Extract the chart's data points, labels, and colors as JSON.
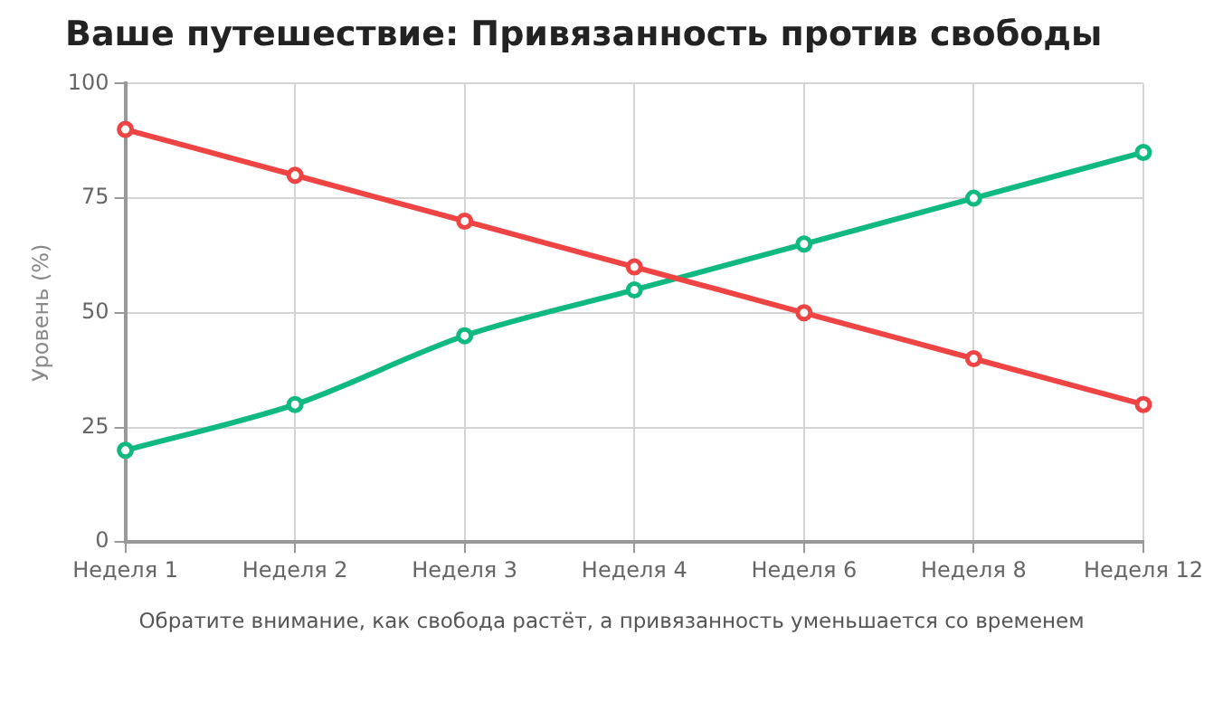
{
  "chart_data": {
    "type": "line",
    "title": "Ваше путешествие: Привязанность против свободы",
    "ylabel": "Уровень (%)",
    "categories": [
      "Неделя 1",
      "Неделя 2",
      "Неделя 3",
      "Неделя 4",
      "Неделя 6",
      "Неделя 8",
      "Неделя 12"
    ],
    "series": [
      {
        "color": "#ef4444",
        "values": [
          90,
          80,
          70,
          60,
          50,
          40,
          30
        ]
      },
      {
        "color": "#10b981",
        "values": [
          20,
          30,
          45,
          55,
          65,
          75,
          85
        ]
      }
    ],
    "ylim": [
      0,
      100
    ],
    "yticks": [
      0,
      25,
      50,
      75,
      100
    ],
    "grid": true,
    "legend": false,
    "marker": "circle",
    "line_style": "solid",
    "annotations": [
      "Обратите внимание, как свобода растёт, а привязанность уменьшается со временем"
    ]
  }
}
